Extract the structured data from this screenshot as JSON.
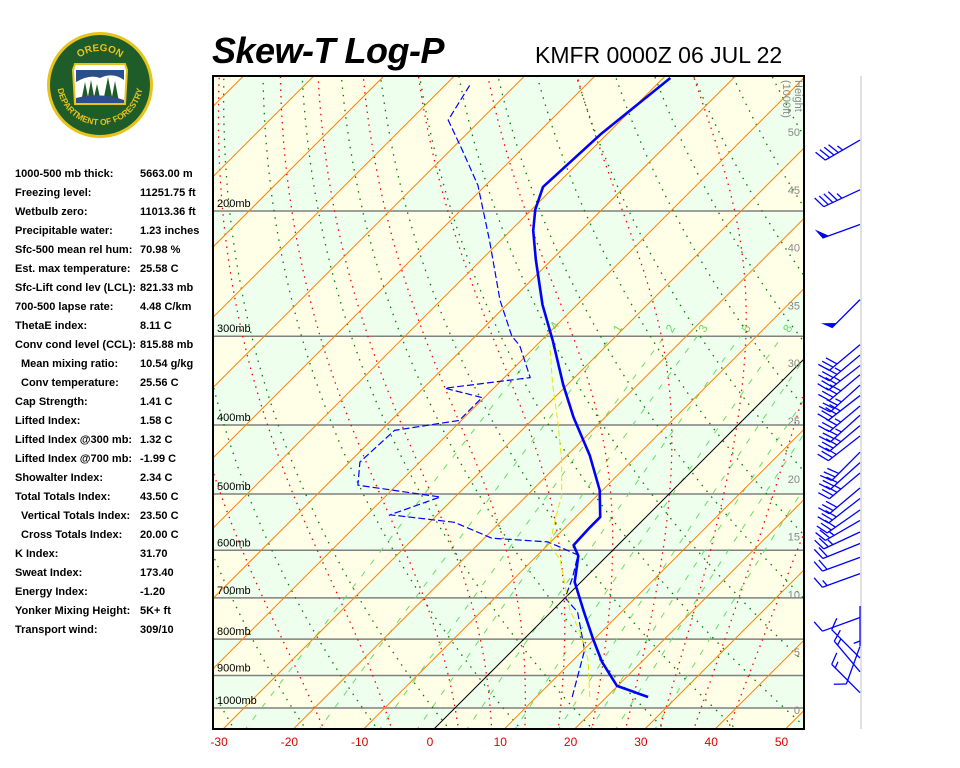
{
  "header": {
    "title": "Skew-T Log-P",
    "station": "KMFR 0000Z 06 JUL 22"
  },
  "logo": {
    "top_text": "OREGON",
    "bottom_text": "DEPARTMENT OF FORESTRY",
    "colors": {
      "ring": "#1e5c2a",
      "border": "#e8c31a",
      "sky": "#2a4f8a"
    }
  },
  "stats": {
    "rows": [
      {
        "label": "1000-500 mb thick:",
        "value": "5663.00 m"
      },
      {
        "label": "Freezing level:",
        "value": "11251.75 ft"
      },
      {
        "label": "Wetbulb zero:",
        "value": "11013.36 ft"
      },
      {
        "label": "Precipitable water:",
        "value": "1.23 inches"
      },
      {
        "label": "Sfc-500 mean rel hum:",
        "value": "70.98 %"
      },
      {
        "label": "Est. max temperature:",
        "value": "25.58 C"
      },
      {
        "label": "Sfc-Lift cond lev (LCL):",
        "value": "821.33 mb"
      },
      {
        "label": "700-500 lapse rate:",
        "value": "4.48 C/km"
      },
      {
        "label": "ThetaE index:",
        "value": "8.11 C"
      },
      {
        "label": "Conv cond level (CCL):",
        "value": "815.88 mb"
      },
      {
        "label": "Mean mixing ratio:",
        "value": "10.54 g/kg"
      },
      {
        "label": "Conv temperature:",
        "value": "25.56 C"
      },
      {
        "label": "Cap Strength:",
        "value": "1.41 C"
      },
      {
        "label": "Lifted Index:",
        "value": "1.58 C"
      },
      {
        "label": "Lifted Index @300 mb:",
        "value": "1.32 C"
      },
      {
        "label": "Lifted Index @700 mb:",
        "value": "-1.99 C"
      },
      {
        "label": "Showalter Index:",
        "value": "2.34 C"
      },
      {
        "label": "Total Totals Index:",
        "value": "43.50 C"
      },
      {
        "label": "Vertical Totals Index:",
        "value": "23.50 C"
      },
      {
        "label": "Cross Totals Index:",
        "value": "20.00 C"
      },
      {
        "label": "K Index:",
        "value": "31.70"
      },
      {
        "label": "Sweat Index:",
        "value": "173.40"
      },
      {
        "label": "Energy Index:",
        "value": "-1.20"
      },
      {
        "label": "Yonker Mixing Height:",
        "value": "5K+ ft"
      },
      {
        "label": "Transport wind:",
        "value": "309/10"
      }
    ]
  },
  "chart_data": {
    "type": "line",
    "subtype": "skew-t log-p",
    "xlabel": "",
    "ylabel": "",
    "x_ticks": [
      "-30",
      "-20",
      "-10",
      "0",
      "10",
      "20",
      "30",
      "40",
      "50"
    ],
    "x_tick_values": [
      -30,
      -20,
      -10,
      0,
      10,
      20,
      30,
      40,
      50
    ],
    "pressure_levels": [
      200,
      300,
      400,
      500,
      600,
      700,
      800,
      900,
      1000
    ],
    "pressure_labels": [
      "200mb",
      "300mb",
      "400mb",
      "500mb",
      "600mb",
      "700mb",
      "800mb",
      "900mb",
      "1000mb"
    ],
    "ylim_mb": [
      1070,
      130
    ],
    "height_axis_label": "Height (1000ft)",
    "height_ticks": [
      "0",
      "5",
      "10",
      "15",
      "20",
      "25",
      "30",
      "35",
      "40",
      "45",
      "50"
    ],
    "height_tick_values": [
      0,
      5,
      10,
      15,
      20,
      25,
      30,
      35,
      40,
      45,
      50
    ],
    "mixing_ratio_labels": [
      ".4",
      "1",
      "2",
      "3",
      "5",
      "8"
    ],
    "mixing_ratio_values": [
      0.4,
      1,
      2,
      3,
      5,
      8,
      12,
      16,
      20,
      28
    ],
    "colors": {
      "isotherm": "#ff8000",
      "zero_isotherm": "#000000",
      "isobar": "#808080",
      "dry_adiabat": "#008000",
      "moist_adiabat": "#ff0000",
      "mixing_ratio": "#66dd66",
      "band_a": "#ffffe8",
      "band_b": "#eeffee",
      "tick_label": "#dd0000",
      "temperature": "#0000ff",
      "dewpoint": "#0000ff",
      "wetbulb": "#e6e600",
      "wind": "#0000ff"
    },
    "series": [
      {
        "style": "solid-thick",
        "color": "#0000ff",
        "points_mb_C": [
          [
            965,
            25.9
          ],
          [
            931,
            19.9
          ],
          [
            862,
            14.4
          ],
          [
            802,
            10.0
          ],
          [
            733,
            4.7
          ],
          [
            665,
            -0.9
          ],
          [
            611,
            -4.1
          ],
          [
            590,
            -6.3
          ],
          [
            558,
            -6.5
          ],
          [
            539,
            -6.5
          ],
          [
            494,
            -10.4
          ],
          [
            441,
            -16.8
          ],
          [
            390,
            -24.5
          ],
          [
            351,
            -30.6
          ],
          [
            304,
            -38.4
          ],
          [
            271,
            -44.9
          ],
          [
            234,
            -52.3
          ],
          [
            213,
            -56.8
          ],
          [
            199,
            -59.5
          ],
          [
            185,
            -61.6
          ],
          [
            156,
            -60.9
          ],
          [
            130,
            -59.0
          ]
        ]
      },
      {
        "style": "dashed",
        "color": "#0000ff",
        "points_mb_C": [
          [
            965,
            15.1
          ],
          [
            829,
            10.2
          ],
          [
            733,
            3.8
          ],
          [
            700,
            0.0
          ],
          [
            656,
            -1.8
          ],
          [
            609,
            -4.3
          ],
          [
            584,
            -10.4
          ],
          [
            577,
            -18.9
          ],
          [
            548,
            -26.5
          ],
          [
            535,
            -36.7
          ],
          [
            505,
            -32.1
          ],
          [
            486,
            -45.5
          ],
          [
            451,
            -48.5
          ],
          [
            407,
            -48.1
          ],
          [
            394,
            -40.3
          ],
          [
            366,
            -40.3
          ],
          [
            355,
            -46.9
          ],
          [
            343,
            -36.3
          ],
          [
            309,
            -42.4
          ],
          [
            300,
            -44.8
          ],
          [
            267,
            -51.6
          ],
          [
            220,
            -61.6
          ],
          [
            184,
            -71.1
          ],
          [
            164,
            -78.4
          ],
          [
            149,
            -84.6
          ],
          [
            133,
            -86.5
          ]
        ]
      },
      {
        "style": "dashed-thin",
        "color": "#e6e600",
        "points_mb_C": [
          [
            965,
            17.6
          ],
          [
            856,
            12.1
          ],
          [
            782,
            7.0
          ],
          [
            728,
            2.4
          ],
          [
            619,
            -6.1
          ],
          [
            590,
            -9.7
          ],
          [
            544,
            -12.5
          ],
          [
            502,
            -15.1
          ],
          [
            448,
            -20.1
          ],
          [
            394,
            -26.3
          ],
          [
            351,
            -32.1
          ],
          [
            309,
            -38.1
          ]
        ]
      }
    ],
    "wind_barbs": [
      {
        "height_kft": 49.3,
        "dir": 240,
        "speed_kt": 45
      },
      {
        "height_kft": 45.0,
        "dir": 245,
        "speed_kt": 45
      },
      {
        "height_kft": 42.0,
        "dir": 250,
        "speed_kt": 50
      },
      {
        "height_kft": 35.5,
        "dir": 225,
        "speed_kt": 50
      },
      {
        "height_kft": 31.6,
        "dir": 230,
        "speed_kt": 30
      },
      {
        "height_kft": 30.7,
        "dir": 230,
        "speed_kt": 35
      },
      {
        "height_kft": 29.8,
        "dir": 232,
        "speed_kt": 35
      },
      {
        "height_kft": 29.0,
        "dir": 230,
        "speed_kt": 40
      },
      {
        "height_kft": 28.1,
        "dir": 228,
        "speed_kt": 35
      },
      {
        "height_kft": 27.2,
        "dir": 232,
        "speed_kt": 40
      },
      {
        "height_kft": 26.3,
        "dir": 230,
        "speed_kt": 35
      },
      {
        "height_kft": 25.5,
        "dir": 228,
        "speed_kt": 35
      },
      {
        "height_kft": 24.6,
        "dir": 230,
        "speed_kt": 35
      },
      {
        "height_kft": 23.7,
        "dir": 232,
        "speed_kt": 30
      },
      {
        "height_kft": 22.3,
        "dir": 225,
        "speed_kt": 30
      },
      {
        "height_kft": 21.4,
        "dir": 228,
        "speed_kt": 30
      },
      {
        "height_kft": 20.5,
        "dir": 230,
        "speed_kt": 35
      },
      {
        "height_kft": 19.2,
        "dir": 230,
        "speed_kt": 30
      },
      {
        "height_kft": 18.3,
        "dir": 232,
        "speed_kt": 30
      },
      {
        "height_kft": 17.3,
        "dir": 235,
        "speed_kt": 30
      },
      {
        "height_kft": 16.4,
        "dir": 240,
        "speed_kt": 25
      },
      {
        "height_kft": 15.4,
        "dir": 245,
        "speed_kt": 25
      },
      {
        "height_kft": 14.4,
        "dir": 248,
        "speed_kt": 20
      },
      {
        "height_kft": 13.2,
        "dir": 250,
        "speed_kt": 20
      },
      {
        "height_kft": 11.8,
        "dir": 250,
        "speed_kt": 15
      },
      {
        "height_kft": 9.0,
        "dir": 180,
        "speed_kt": 5
      },
      {
        "height_kft": 8.0,
        "dir": 250,
        "speed_kt": 10
      },
      {
        "height_kft": 5.5,
        "dir": 200,
        "speed_kt": 10
      },
      {
        "height_kft": 4.5,
        "dir": 315,
        "speed_kt": 10
      },
      {
        "height_kft": 3.3,
        "dir": 320,
        "speed_kt": 15
      },
      {
        "height_kft": 1.5,
        "dir": 315,
        "speed_kt": 15
      }
    ]
  }
}
